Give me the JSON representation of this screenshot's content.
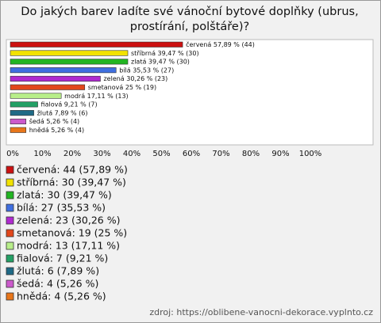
{
  "chart_data": {
    "type": "bar",
    "orientation": "horizontal",
    "title": "Do jakých barev ladíte své vánoční bytové doplňky (ubrus, prostírání, polštáře)?",
    "values": [
      57.89,
      39.47,
      39.47,
      35.53,
      30.26,
      25,
      17.11,
      9.21,
      7.89,
      5.26,
      5.26
    ],
    "value_labels": [
      "červená 57,89 % (44)",
      "stříbrná 39,47 % (30)",
      "zlatá 39,47 % (30)",
      "bílá 35,53 % (27)",
      "zelená 30,26 % (23)",
      "smetanová 25 % (19)",
      "modrá 17,11 % (13)",
      "fialová 9,21 % (7)",
      "žlutá 7,89 % (6)",
      "šedá 5,26 % (4)",
      "hnědá 5,26 % (4)"
    ],
    "colors": [
      "#cc1111",
      "#f2e200",
      "#22b522",
      "#3f6fe0",
      "#b02ad0",
      "#e2471a",
      "#b8ee8a",
      "#23a065",
      "#1f6a86",
      "#cc5acc",
      "#e8761a"
    ],
    "legend": [
      "červená: 44 (57,89 %)",
      "stříbrná: 30 (39,47 %)",
      "zlatá: 30 (39,47 %)",
      "bílá: 27 (35,53 %)",
      "zelená: 23 (30,26 %)",
      "smetanová: 19 (25 %)",
      "modrá: 13 (17,11 %)",
      "fialová: 7 (9,21 %)",
      "žlutá: 6 (7,89 %)",
      "šedá: 4 (5,26 %)",
      "hnědá: 4 (5,26 %)"
    ],
    "xlim": [
      0,
      100
    ],
    "xticks": [
      {
        "value": 0,
        "label": "0%"
      },
      {
        "value": 10,
        "label": "10%"
      },
      {
        "value": 20,
        "label": "20%"
      },
      {
        "value": 30,
        "label": "30%"
      },
      {
        "value": 40,
        "label": "40%"
      },
      {
        "value": 50,
        "label": "50%"
      },
      {
        "value": 60,
        "label": "60%"
      },
      {
        "value": 70,
        "label": "70%"
      },
      {
        "value": 80,
        "label": "80%"
      },
      {
        "value": 90,
        "label": "90%"
      },
      {
        "value": 100,
        "label": "100%"
      }
    ],
    "source": "zdroj: https://oblibene-vanocni-dekorace.vyplnto.cz"
  }
}
